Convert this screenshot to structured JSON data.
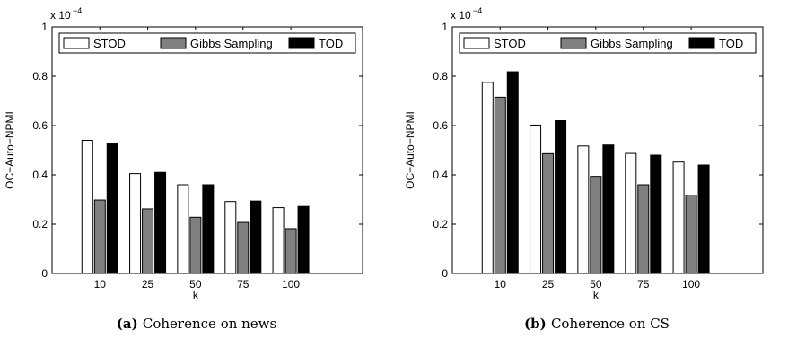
{
  "legend_labels": [
    "STOD",
    "Gibbs Sampling",
    "TOD"
  ],
  "series_colors": [
    "#ffffff",
    "#808080",
    "#000000"
  ],
  "chart_data": [
    {
      "type": "bar",
      "caption_tag": "(a)",
      "caption_text": "Coherence on news",
      "xlabel": "k",
      "ylabel": "OC−Auto−NPMI",
      "y_exponent_base": "x 10",
      "y_exponent_power": "−4",
      "ylim": [
        0,
        1
      ],
      "yticks": [
        "0",
        "0.2",
        "0.4",
        "0.6",
        "0.8",
        "1"
      ],
      "legend_position": "top",
      "grid": false,
      "categories": [
        "10",
        "25",
        "50",
        "75",
        "100"
      ],
      "series": [
        {
          "name": "STOD",
          "values": [
            0.54,
            0.405,
            0.36,
            0.292,
            0.267
          ]
        },
        {
          "name": "Gibbs Sampling",
          "values": [
            0.298,
            0.262,
            0.228,
            0.207,
            0.182
          ]
        },
        {
          "name": "TOD",
          "values": [
            0.527,
            0.41,
            0.36,
            0.294,
            0.272
          ]
        }
      ]
    },
    {
      "type": "bar",
      "caption_tag": "(b)",
      "caption_text": "Coherence on CS",
      "xlabel": "k",
      "ylabel": "OC−Auto−NPMI",
      "y_exponent_base": "x 10",
      "y_exponent_power": "−4",
      "ylim": [
        0,
        1
      ],
      "yticks": [
        "0",
        "0.2",
        "0.4",
        "0.6",
        "0.8",
        "1"
      ],
      "legend_position": "top",
      "grid": false,
      "categories": [
        "10",
        "25",
        "50",
        "75",
        "100"
      ],
      "series": [
        {
          "name": "STOD",
          "values": [
            0.775,
            0.602,
            0.517,
            0.487,
            0.452
          ]
        },
        {
          "name": "Gibbs Sampling",
          "values": [
            0.715,
            0.486,
            0.394,
            0.36,
            0.318
          ]
        },
        {
          "name": "TOD",
          "values": [
            0.818,
            0.62,
            0.521,
            0.48,
            0.44
          ]
        }
      ]
    }
  ]
}
